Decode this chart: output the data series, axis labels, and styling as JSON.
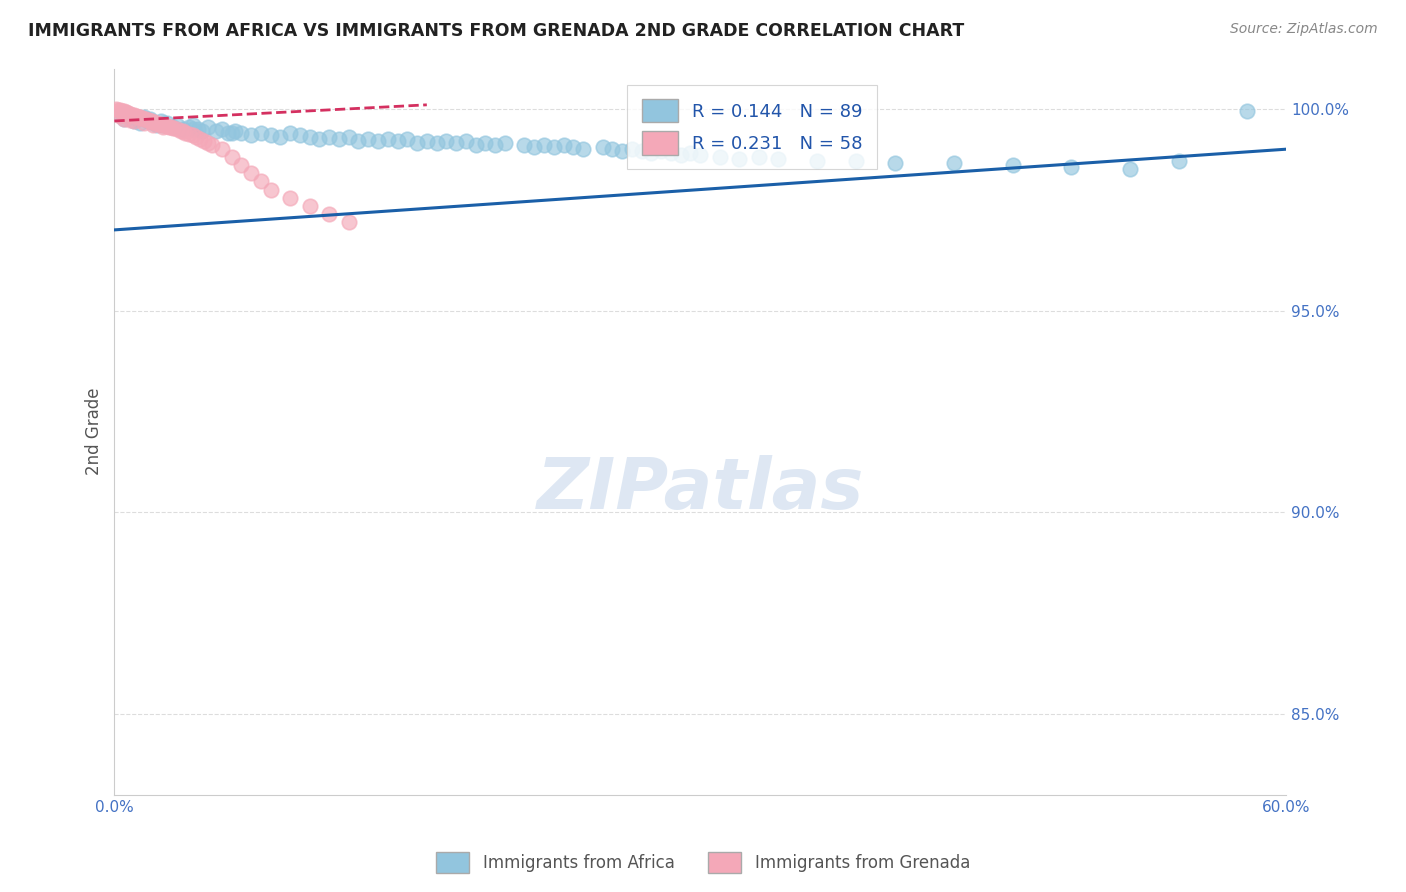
{
  "title": "IMMIGRANTS FROM AFRICA VS IMMIGRANTS FROM GRENADA 2ND GRADE CORRELATION CHART",
  "source": "Source: ZipAtlas.com",
  "ylabel": "2nd Grade",
  "xlim": [
    0.0,
    0.6
  ],
  "ylim": [
    0.83,
    1.01
  ],
  "xticks": [
    0.0,
    0.1,
    0.2,
    0.3,
    0.4,
    0.5,
    0.6
  ],
  "xticklabels": [
    "0.0%",
    "",
    "",
    "",
    "",
    "",
    "60.0%"
  ],
  "right_yticks": [
    0.85,
    0.9,
    0.95,
    1.0
  ],
  "right_yticklabels": [
    "85.0%",
    "90.0%",
    "95.0%",
    "100.0%"
  ],
  "legend_blue_r": "R = 0.144",
  "legend_blue_n": "N = 89",
  "legend_pink_r": "R = 0.231",
  "legend_pink_n": "N = 58",
  "blue_color": "#92C5DE",
  "pink_color": "#F4A8B8",
  "blue_line_color": "#1A5FA8",
  "pink_line_color": "#D43060",
  "title_color": "#222222",
  "axis_label_color": "#555555",
  "tick_color": "#4472C4",
  "grid_color": "#DDDDDD",
  "watermark_color": "#C8D8EC",
  "blue_scatter_x": [
    0.003,
    0.005,
    0.006,
    0.008,
    0.01,
    0.012,
    0.013,
    0.015,
    0.017,
    0.018,
    0.02,
    0.022,
    0.024,
    0.025,
    0.027,
    0.03,
    0.032,
    0.035,
    0.038,
    0.04,
    0.043,
    0.045,
    0.048,
    0.052,
    0.055,
    0.058,
    0.062,
    0.065,
    0.07,
    0.075,
    0.08,
    0.085,
    0.09,
    0.095,
    0.1,
    0.105,
    0.11,
    0.115,
    0.12,
    0.125,
    0.13,
    0.135,
    0.14,
    0.145,
    0.15,
    0.155,
    0.16,
    0.165,
    0.17,
    0.175,
    0.18,
    0.185,
    0.19,
    0.195,
    0.2,
    0.21,
    0.215,
    0.22,
    0.225,
    0.23,
    0.235,
    0.24,
    0.25,
    0.255,
    0.26,
    0.265,
    0.27,
    0.275,
    0.28,
    0.285,
    0.29,
    0.295,
    0.3,
    0.31,
    0.32,
    0.33,
    0.34,
    0.36,
    0.38,
    0.4,
    0.43,
    0.46,
    0.49,
    0.52,
    0.545,
    0.025,
    0.04,
    0.06,
    0.58
  ],
  "blue_scatter_y": [
    0.9985,
    0.9975,
    0.999,
    0.998,
    0.997,
    0.9975,
    0.9965,
    0.998,
    0.997,
    0.9975,
    0.9965,
    0.996,
    0.997,
    0.996,
    0.9965,
    0.9955,
    0.996,
    0.995,
    0.9955,
    0.996,
    0.995,
    0.9945,
    0.9955,
    0.9945,
    0.995,
    0.994,
    0.9945,
    0.994,
    0.9935,
    0.994,
    0.9935,
    0.993,
    0.994,
    0.9935,
    0.993,
    0.9925,
    0.993,
    0.9925,
    0.993,
    0.992,
    0.9925,
    0.992,
    0.9925,
    0.992,
    0.9925,
    0.9915,
    0.992,
    0.9915,
    0.992,
    0.9915,
    0.992,
    0.991,
    0.9915,
    0.991,
    0.9915,
    0.991,
    0.9905,
    0.991,
    0.9905,
    0.991,
    0.9905,
    0.99,
    0.9905,
    0.99,
    0.9895,
    0.99,
    0.9895,
    0.989,
    0.9895,
    0.989,
    0.9885,
    0.989,
    0.9885,
    0.988,
    0.9875,
    0.988,
    0.9875,
    0.987,
    0.987,
    0.9865,
    0.9865,
    0.986,
    0.9855,
    0.985,
    0.987,
    0.9965,
    0.995,
    0.994,
    0.9995
  ],
  "pink_scatter_x": [
    0.001,
    0.002,
    0.003,
    0.004,
    0.005,
    0.006,
    0.007,
    0.008,
    0.009,
    0.01,
    0.011,
    0.012,
    0.013,
    0.014,
    0.015,
    0.016,
    0.017,
    0.018,
    0.019,
    0.02,
    0.021,
    0.022,
    0.023,
    0.024,
    0.025,
    0.026,
    0.027,
    0.028,
    0.029,
    0.03,
    0.032,
    0.034,
    0.036,
    0.038,
    0.04,
    0.042,
    0.044,
    0.046,
    0.048,
    0.05,
    0.055,
    0.06,
    0.065,
    0.07,
    0.075,
    0.08,
    0.09,
    0.1,
    0.11,
    0.12,
    0.01,
    0.015,
    0.02,
    0.025,
    0.035,
    0.003,
    0.005,
    0.008
  ],
  "pink_scatter_y": [
    1.0,
    0.9998,
    0.9996,
    0.9995,
    0.9994,
    0.9992,
    0.999,
    0.9988,
    0.9986,
    0.9985,
    0.9983,
    0.9981,
    0.9979,
    0.9978,
    0.9976,
    0.9974,
    0.9973,
    0.9971,
    0.997,
    0.9968,
    0.9966,
    0.9965,
    0.9963,
    0.9962,
    0.996,
    0.9959,
    0.9957,
    0.9956,
    0.9954,
    0.9953,
    0.995,
    0.9945,
    0.994,
    0.9938,
    0.9935,
    0.993,
    0.9925,
    0.992,
    0.9915,
    0.991,
    0.99,
    0.988,
    0.986,
    0.984,
    0.982,
    0.98,
    0.978,
    0.976,
    0.974,
    0.972,
    0.997,
    0.9965,
    0.996,
    0.9955,
    0.9945,
    0.9982,
    0.9975,
    0.9972
  ],
  "blue_line_x0": 0.0,
  "blue_line_y0": 0.97,
  "blue_line_x1": 0.6,
  "blue_line_y1": 0.99,
  "pink_line_x0": 0.0,
  "pink_line_y0": 0.997,
  "pink_line_x1": 0.16,
  "pink_line_y1": 1.001
}
